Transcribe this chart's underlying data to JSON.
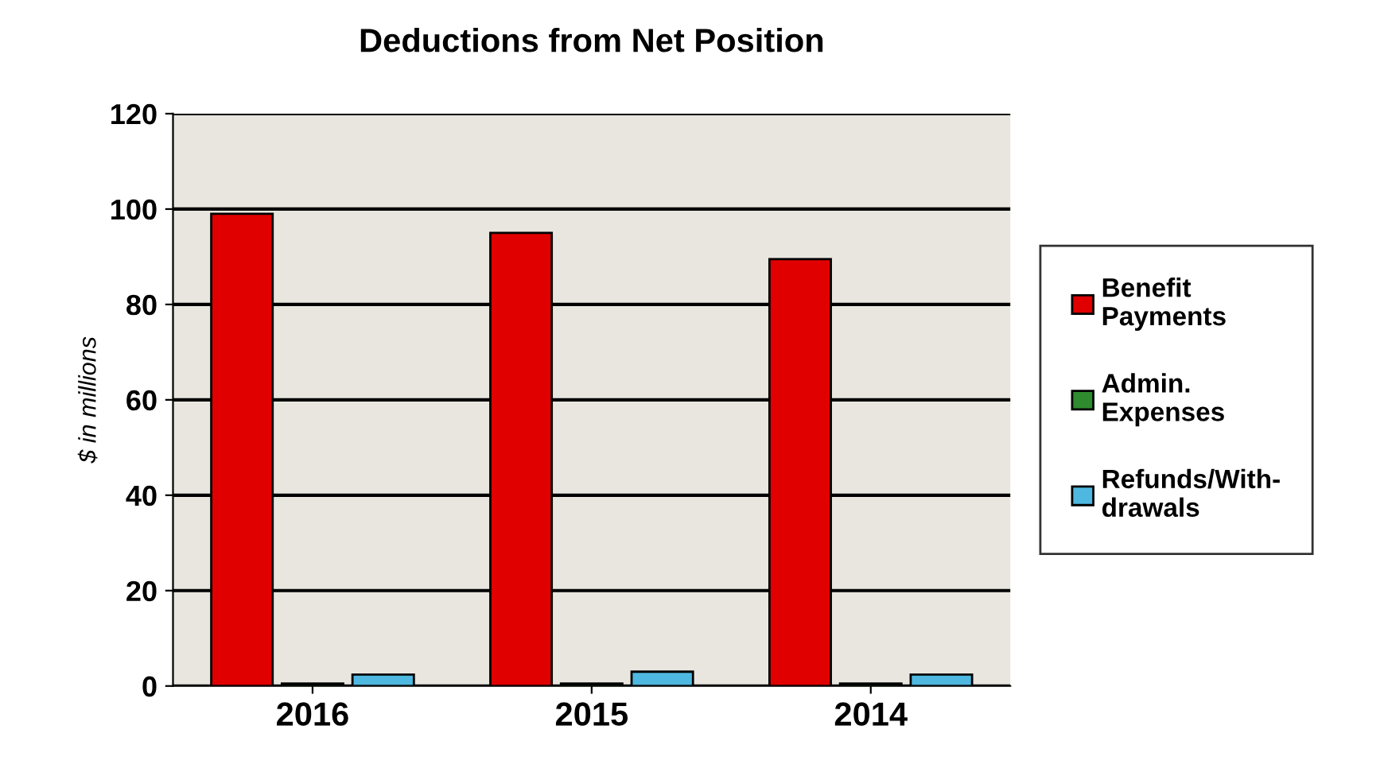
{
  "chart_data": {
    "type": "bar",
    "title": "Deductions from Net Position",
    "ylabel": "$ in millions",
    "categories": [
      "2016",
      "2015",
      "2014"
    ],
    "series": [
      {
        "name": "Benefit\nPayments",
        "color": "#e00000",
        "values": [
          99,
          95,
          89.5
        ]
      },
      {
        "name": "Admin.\nExpenses",
        "color": "#2e8b2e",
        "values": [
          0.5,
          0.5,
          0.5
        ]
      },
      {
        "name": "Refunds/With-\ndrawals",
        "color": "#4fb8e0",
        "values": [
          2.4,
          3,
          2.4
        ]
      }
    ],
    "ylim": [
      0,
      120
    ],
    "yticks": [
      0,
      20,
      40,
      60,
      80,
      100,
      120
    ],
    "grid": "y",
    "legend": "right"
  }
}
